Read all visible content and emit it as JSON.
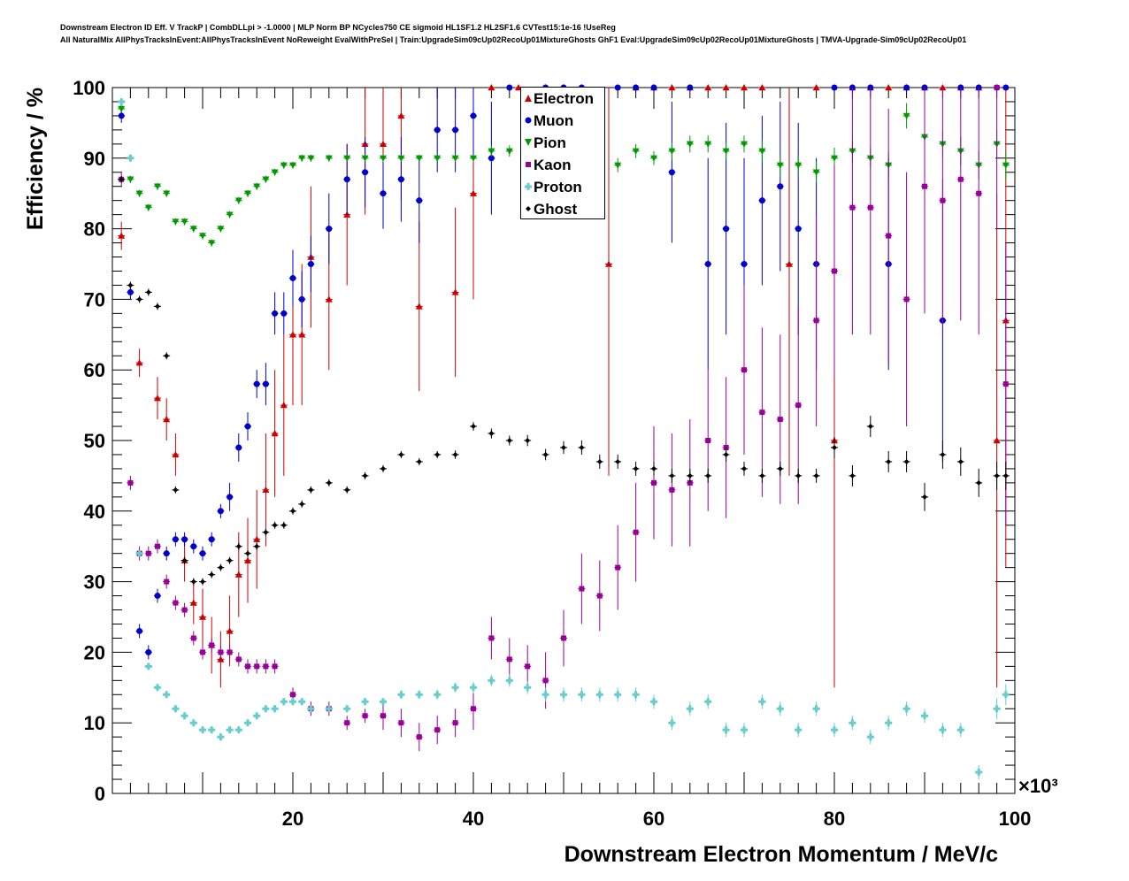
{
  "title_line1": "Downstream Electron ID Eff. V TrackP | CombDLLpi > -1.0000 | MLP Norm BP NCycles750 CE sigmoid HL1SF1.2 HL2SF1.6 CVTest15:1e-16 !UseReg",
  "title_line2": "All NaturalMix AllPhysTracksInEvent:AllPhysTracksInEvent NoReweight EvalWithPreSel | Train:UpgradeSim09cUp02RecoUp01MixtureGhosts GhF1 Eval:UpgradeSim09cUp02RecoUp01MixtureGhosts | TMVA-Upgrade-Sim09cUp02RecoUp01",
  "chart_data": {
    "type": "scatter",
    "xlabel": "Downstream Electron Momentum / MeV/c",
    "ylabel": "Efficiency / %",
    "x_multiplier": "×10³",
    "xlim": [
      0,
      100000
    ],
    "ylim": [
      0,
      100
    ],
    "x_ticks": [
      20,
      40,
      60,
      80,
      100
    ],
    "y_ticks": [
      0,
      10,
      20,
      30,
      40,
      50,
      60,
      70,
      80,
      90,
      100
    ],
    "legend_position": "top-center",
    "series": [
      {
        "name": "Electron",
        "color": "#cc0000",
        "marker": "triangle-up",
        "x": [
          1000,
          3000,
          5000,
          6000,
          7000,
          8000,
          9000,
          10000,
          11000,
          12000,
          13000,
          14000,
          15000,
          16000,
          17000,
          18000,
          19000,
          20000,
          21000,
          22000,
          24000,
          26000,
          28000,
          30000,
          32000,
          34000,
          38000,
          40000,
          42000,
          45000,
          48000,
          50000,
          52000,
          55000,
          58000,
          60000,
          62000,
          64000,
          66000,
          68000,
          70000,
          72000,
          75000,
          78000,
          80000,
          82000,
          84000,
          86000,
          88000,
          90000,
          92000,
          94000,
          96000,
          98000,
          99000
        ],
        "y": [
          79,
          61,
          56,
          53,
          48,
          33,
          27,
          25,
          21,
          19,
          23,
          31,
          33,
          36,
          43,
          51,
          55,
          65,
          65,
          76,
          70,
          82,
          92,
          92,
          96,
          69,
          71,
          85,
          100,
          100,
          100,
          100,
          100,
          75,
          100,
          100,
          100,
          100,
          100,
          100,
          100,
          100,
          75,
          100,
          50,
          100,
          100,
          100,
          100,
          100,
          100,
          100,
          100,
          50,
          67
        ],
        "err": [
          2,
          2,
          3,
          3,
          3,
          3,
          3,
          4,
          4,
          4,
          5,
          6,
          6,
          7,
          8,
          9,
          10,
          10,
          10,
          10,
          10,
          10,
          10,
          10,
          12,
          12,
          12,
          15,
          0,
          0,
          0,
          0,
          0,
          30,
          0,
          0,
          0,
          0,
          0,
          0,
          0,
          0,
          30,
          0,
          35,
          0,
          0,
          0,
          0,
          0,
          0,
          0,
          0,
          35,
          35
        ]
      },
      {
        "name": "Muon",
        "color": "#0000cc",
        "marker": "circle",
        "x": [
          1000,
          2000,
          3000,
          4000,
          5000,
          6000,
          7000,
          8000,
          9000,
          10000,
          11000,
          12000,
          13000,
          14000,
          15000,
          16000,
          17000,
          18000,
          19000,
          20000,
          21000,
          22000,
          24000,
          26000,
          28000,
          30000,
          32000,
          34000,
          36000,
          38000,
          40000,
          42000,
          44000,
          46000,
          48000,
          50000,
          52000,
          54000,
          56000,
          58000,
          60000,
          62000,
          64000,
          66000,
          68000,
          70000,
          72000,
          74000,
          76000,
          78000,
          80000,
          82000,
          84000,
          86000,
          88000,
          90000,
          92000,
          94000,
          96000,
          98000,
          99000
        ],
        "y": [
          96,
          71,
          23,
          20,
          28,
          34,
          36,
          36,
          35,
          34,
          36,
          40,
          42,
          49,
          52,
          58,
          58,
          68,
          68,
          73,
          70,
          75,
          80,
          87,
          88,
          85,
          87,
          84,
          94,
          94,
          96,
          90,
          100,
          97,
          100,
          100,
          100,
          98,
          100,
          100,
          100,
          88,
          100,
          75,
          80,
          75,
          84,
          86,
          80,
          75,
          100,
          100,
          100,
          75,
          100,
          100,
          67,
          100,
          100,
          100,
          100
        ],
        "err": [
          1,
          1,
          1,
          1,
          1,
          1,
          1,
          1,
          1,
          1,
          1,
          1,
          2,
          2,
          2,
          2,
          3,
          3,
          3,
          4,
          4,
          4,
          5,
          5,
          5,
          5,
          6,
          6,
          6,
          6,
          6,
          8,
          0,
          6,
          0,
          0,
          0,
          8,
          0,
          0,
          0,
          10,
          0,
          15,
          15,
          15,
          12,
          12,
          15,
          15,
          0,
          0,
          0,
          15,
          0,
          0,
          20,
          0,
          0,
          0,
          0
        ]
      },
      {
        "name": "Pion",
        "color": "#009900",
        "marker": "triangle-down",
        "x": [
          1000,
          2000,
          3000,
          4000,
          5000,
          6000,
          7000,
          8000,
          9000,
          10000,
          11000,
          12000,
          13000,
          14000,
          15000,
          16000,
          17000,
          18000,
          19000,
          20000,
          21000,
          22000,
          24000,
          26000,
          28000,
          30000,
          32000,
          34000,
          36000,
          38000,
          40000,
          42000,
          44000,
          46000,
          48000,
          50000,
          52000,
          54000,
          56000,
          58000,
          60000,
          62000,
          64000,
          66000,
          68000,
          70000,
          72000,
          74000,
          76000,
          78000,
          80000,
          82000,
          84000,
          86000,
          88000,
          90000,
          92000,
          94000,
          96000,
          98000,
          99000
        ],
        "y": [
          97,
          87,
          85,
          83,
          86,
          85,
          81,
          81,
          80,
          79,
          78,
          80,
          82,
          84,
          85,
          86,
          87,
          88,
          89,
          89,
          90,
          90,
          90,
          90,
          90,
          90,
          90,
          90,
          90,
          90,
          90,
          91,
          91,
          90,
          91,
          90,
          90,
          89,
          89,
          91,
          90,
          91,
          92,
          92,
          91,
          92,
          91,
          89,
          89,
          88,
          90,
          91,
          90,
          89,
          96,
          93,
          92,
          91,
          89,
          92,
          89
        ],
        "err": [
          0.5,
          0.5,
          0.5,
          0.5,
          0.5,
          0.5,
          0.5,
          0.5,
          0.5,
          0.5,
          0.5,
          0.5,
          0.5,
          0.5,
          0.5,
          0.5,
          0.5,
          0.5,
          0.5,
          0.5,
          0.5,
          0.5,
          0.5,
          0.5,
          0.5,
          0.5,
          0.5,
          0.5,
          0.5,
          0.5,
          0.5,
          0.8,
          0.8,
          0.8,
          0.8,
          1,
          1,
          1,
          1,
          1,
          1,
          1.2,
          1.2,
          1.2,
          1.2,
          1.2,
          1.5,
          1.5,
          1.5,
          1.5,
          1.5,
          1.5,
          1.5,
          1.8,
          1.8,
          1.8,
          1.8,
          2,
          2,
          2,
          2
        ]
      },
      {
        "name": "Kaon",
        "color": "#990099",
        "marker": "square",
        "x": [
          1000,
          2000,
          3000,
          4000,
          5000,
          6000,
          7000,
          8000,
          9000,
          10000,
          11000,
          12000,
          13000,
          14000,
          15000,
          16000,
          17000,
          18000,
          20000,
          22000,
          24000,
          26000,
          28000,
          30000,
          32000,
          34000,
          36000,
          38000,
          40000,
          42000,
          44000,
          46000,
          48000,
          50000,
          52000,
          54000,
          56000,
          58000,
          60000,
          62000,
          64000,
          66000,
          68000,
          70000,
          72000,
          74000,
          76000,
          78000,
          80000,
          82000,
          84000,
          86000,
          88000,
          90000,
          92000,
          94000,
          96000,
          98000,
          99000
        ],
        "y": [
          87,
          44,
          34,
          34,
          35,
          30,
          27,
          26,
          22,
          20,
          21,
          20,
          20,
          19,
          18,
          18,
          18,
          18,
          14,
          12,
          12,
          10,
          11,
          11,
          10,
          8,
          9,
          10,
          12,
          22,
          19,
          18,
          16,
          22,
          29,
          28,
          32,
          37,
          44,
          43,
          44,
          50,
          49,
          60,
          54,
          53,
          55,
          67,
          74,
          83,
          83,
          79,
          70,
          86,
          84,
          87,
          85,
          100,
          58
        ],
        "err": [
          1,
          1,
          1,
          1,
          1,
          1,
          1,
          1,
          1,
          1,
          1,
          1,
          1,
          1,
          1,
          1,
          1,
          1,
          1,
          1,
          1,
          1,
          1,
          2,
          2,
          2,
          2,
          2,
          3,
          3,
          3,
          3,
          4,
          4,
          5,
          5,
          6,
          7,
          8,
          8,
          9,
          10,
          10,
          12,
          12,
          12,
          14,
          15,
          15,
          18,
          18,
          18,
          18,
          18,
          18,
          20,
          20,
          20,
          20
        ]
      },
      {
        "name": "Proton",
        "color": "#66cccc",
        "marker": "cross",
        "x": [
          1000,
          2000,
          3000,
          4000,
          5000,
          6000,
          7000,
          8000,
          9000,
          10000,
          11000,
          12000,
          13000,
          14000,
          15000,
          16000,
          17000,
          18000,
          19000,
          20000,
          21000,
          22000,
          24000,
          26000,
          28000,
          30000,
          32000,
          34000,
          36000,
          38000,
          40000,
          42000,
          44000,
          46000,
          48000,
          50000,
          52000,
          54000,
          56000,
          58000,
          60000,
          62000,
          64000,
          66000,
          68000,
          70000,
          72000,
          74000,
          76000,
          78000,
          80000,
          82000,
          84000,
          86000,
          88000,
          90000,
          92000,
          94000,
          96000,
          98000,
          99000
        ],
        "y": [
          98,
          90,
          34,
          18,
          15,
          14,
          12,
          11,
          10,
          9,
          9,
          8,
          9,
          9,
          10,
          11,
          12,
          12,
          13,
          13,
          13,
          12,
          12,
          12,
          13,
          13,
          14,
          14,
          14,
          15,
          15,
          16,
          16,
          15,
          14,
          14,
          14,
          14,
          14,
          14,
          13,
          10,
          12,
          13,
          9,
          9,
          13,
          12,
          9,
          12,
          9,
          10,
          8,
          10,
          12,
          11,
          9,
          9,
          3,
          12,
          14
        ],
        "err": [
          0.5,
          0.5,
          0.5,
          0.3,
          0.3,
          0.3,
          0.3,
          0.3,
          0.3,
          0.3,
          0.3,
          0.3,
          0.3,
          0.3,
          0.3,
          0.3,
          0.3,
          0.3,
          0.3,
          0.3,
          0.3,
          0.3,
          0.4,
          0.4,
          0.5,
          0.5,
          0.6,
          0.6,
          0.7,
          0.7,
          0.8,
          0.8,
          0.9,
          0.9,
          1,
          1,
          1,
          1,
          1,
          1,
          1,
          1,
          1,
          1,
          1,
          1,
          1,
          1,
          1,
          1,
          1,
          1,
          1,
          1,
          1,
          1,
          1,
          1,
          1,
          1.5,
          1.5
        ]
      },
      {
        "name": "Ghost",
        "color": "#000000",
        "marker": "diamond",
        "x": [
          1000,
          2000,
          3000,
          4000,
          5000,
          6000,
          7000,
          8000,
          9000,
          10000,
          11000,
          12000,
          13000,
          14000,
          15000,
          16000,
          17000,
          18000,
          19000,
          20000,
          21000,
          22000,
          24000,
          26000,
          28000,
          30000,
          32000,
          34000,
          36000,
          38000,
          40000,
          42000,
          44000,
          46000,
          48000,
          50000,
          52000,
          54000,
          56000,
          58000,
          60000,
          62000,
          64000,
          66000,
          68000,
          70000,
          72000,
          74000,
          76000,
          78000,
          80000,
          82000,
          84000,
          86000,
          88000,
          90000,
          92000,
          94000,
          96000,
          98000,
          99000
        ],
        "y": [
          87,
          72,
          70,
          71,
          69,
          62,
          43,
          33,
          30,
          30,
          31,
          32,
          33,
          35,
          34,
          35,
          37,
          38,
          38,
          40,
          41,
          43,
          44,
          43,
          45,
          46,
          48,
          47,
          48,
          48,
          52,
          51,
          50,
          50,
          48,
          49,
          49,
          47,
          47,
          46,
          46,
          45,
          45,
          45,
          48,
          46,
          45,
          46,
          45,
          45,
          49,
          45,
          52,
          47,
          47,
          42,
          48,
          47,
          44,
          45,
          45
        ],
        "err": [
          0.5,
          0.5,
          0.5,
          0.5,
          0.5,
          0.5,
          0.5,
          0.5,
          0.5,
          0.5,
          0.5,
          0.5,
          0.5,
          0.5,
          0.5,
          0.5,
          0.5,
          0.5,
          0.5,
          0.5,
          0.5,
          0.5,
          0.5,
          0.5,
          0.5,
          0.5,
          0.5,
          0.5,
          0.5,
          0.6,
          0.6,
          0.7,
          0.7,
          0.8,
          0.8,
          0.9,
          1,
          1,
          1,
          1,
          1,
          1,
          1,
          1,
          1,
          1,
          1,
          1,
          1,
          1,
          1.5,
          1.5,
          1.5,
          1.5,
          1.5,
          2,
          2,
          2,
          2,
          2,
          2
        ]
      }
    ]
  }
}
